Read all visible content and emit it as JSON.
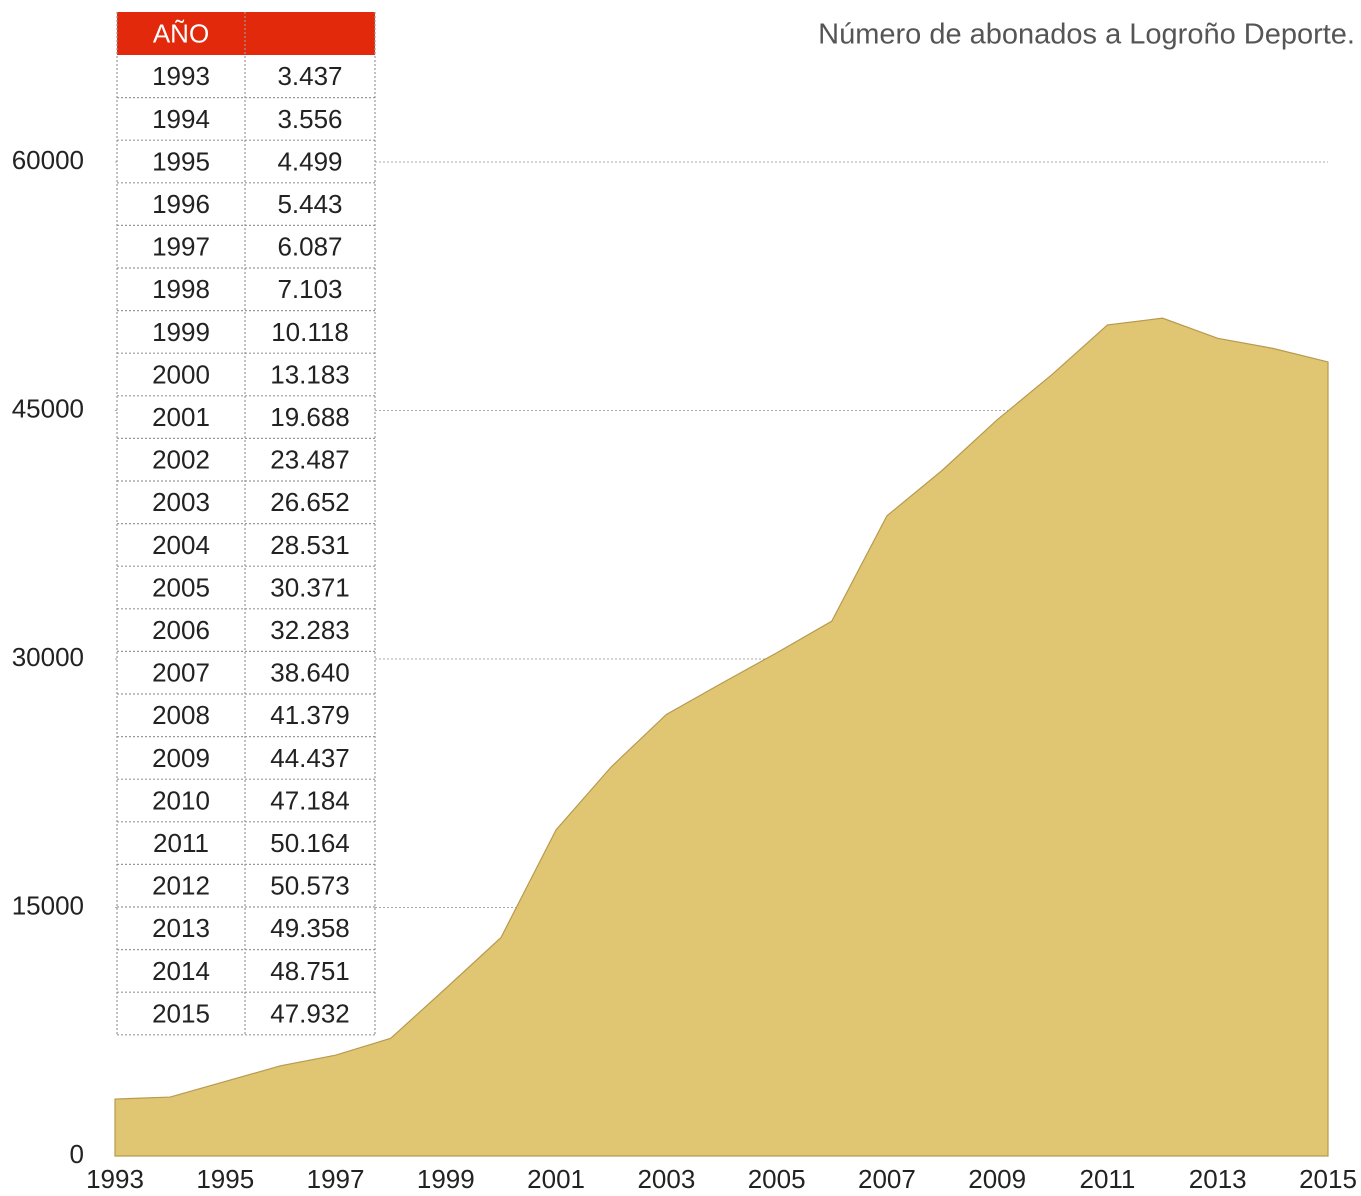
{
  "chart_data": {
    "type": "area",
    "title": "Número de abonados a Logroño Deporte.",
    "table_header": "AÑO",
    "x": [
      1993,
      1994,
      1995,
      1996,
      1997,
      1998,
      1999,
      2000,
      2001,
      2002,
      2003,
      2004,
      2005,
      2006,
      2007,
      2008,
      2009,
      2010,
      2011,
      2012,
      2013,
      2014,
      2015
    ],
    "values": [
      3437,
      3556,
      4499,
      5443,
      6087,
      7103,
      10118,
      13183,
      19688,
      23487,
      26652,
      28531,
      30371,
      32283,
      38640,
      41379,
      44437,
      47184,
      50164,
      50573,
      49358,
      48751,
      47932
    ],
    "value_labels": [
      "3.437",
      "3.556",
      "4.499",
      "5.443",
      "6.087",
      "7.103",
      "10.118",
      "13.183",
      "19.688",
      "23.487",
      "26.652",
      "28.531",
      "30.371",
      "32.283",
      "38.640",
      "41.379",
      "44.437",
      "47.184",
      "50.164",
      "50.573",
      "49.358",
      "48.751",
      "47.932"
    ],
    "color": "#e0c673",
    "xlim": [
      1993,
      2015
    ],
    "xticks": [
      1993,
      1995,
      1997,
      1999,
      2001,
      2003,
      2005,
      2007,
      2009,
      2011,
      2013,
      2015
    ],
    "ylim": [
      0,
      60000
    ],
    "yticks": [
      0,
      15000,
      30000,
      45000,
      60000
    ],
    "grid": true
  }
}
